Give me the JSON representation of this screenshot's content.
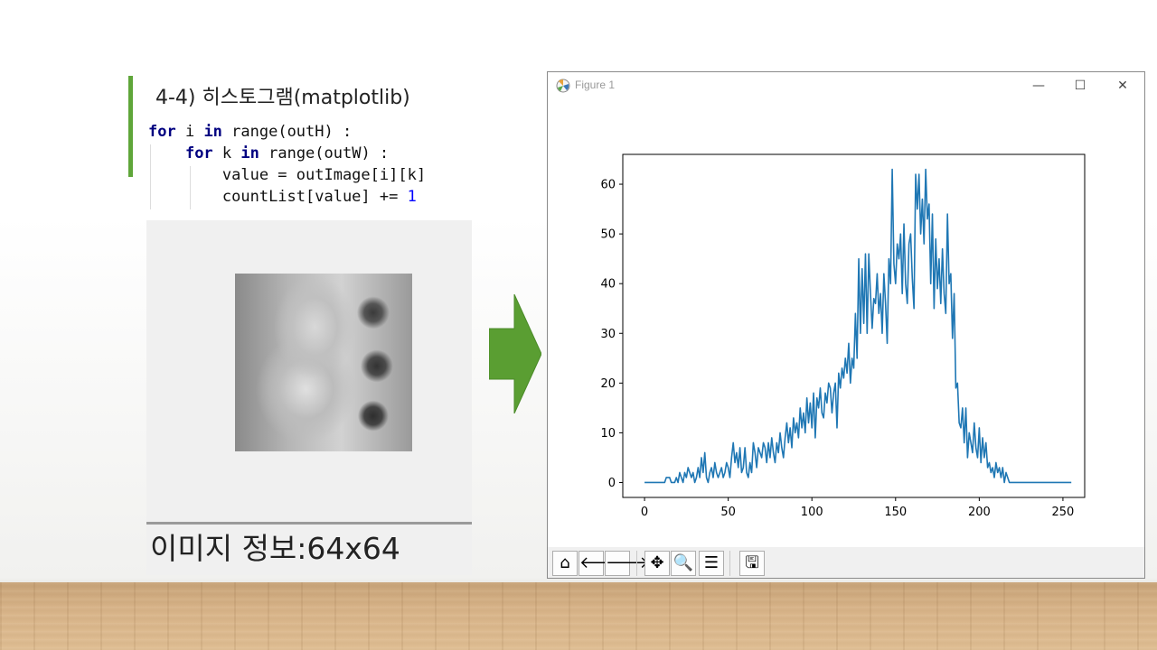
{
  "slide": {
    "title": "4-4) 히스토그램(matplotlib)",
    "code": [
      {
        "indent": "",
        "parts": [
          {
            "t": "for",
            "k": "kw"
          },
          {
            "t": " i "
          },
          {
            "t": "in",
            "k": "kw"
          },
          {
            "t": " range(outH) :"
          }
        ]
      },
      {
        "indent": "    ",
        "parts": [
          {
            "t": "for",
            "k": "kw"
          },
          {
            "t": " k "
          },
          {
            "t": "in",
            "k": "kw"
          },
          {
            "t": " range(outW) :"
          }
        ]
      },
      {
        "indent": "        ",
        "parts": [
          {
            "t": "value = outImage[i][k]"
          }
        ]
      },
      {
        "indent": "        ",
        "parts": [
          {
            "t": "countList[value] += "
          },
          {
            "t": "1",
            "k": "num"
          }
        ]
      }
    ],
    "image_info": "이미지 정보:64x64",
    "accent_color": "#5fa63a",
    "arrow_color": "#5a9e32"
  },
  "figure_window": {
    "title": "Figure 1",
    "icon": "matplotlib-icon",
    "controls": {
      "minimize": "—",
      "maximize": "☐",
      "close": "✕"
    },
    "toolbar": [
      {
        "name": "home-icon",
        "glyph": "⌂"
      },
      {
        "name": "back-icon",
        "glyph": "🡐"
      },
      {
        "name": "forward-icon",
        "glyph": "🡒"
      },
      {
        "name": "pan-icon",
        "glyph": "✥"
      },
      {
        "name": "zoom-icon",
        "glyph": "🔍"
      },
      {
        "name": "configure-subplots-icon",
        "glyph": "☰"
      },
      {
        "name": "save-icon",
        "glyph": "🖫"
      }
    ]
  },
  "chart_data": {
    "type": "line",
    "title": "",
    "xlabel": "",
    "ylabel": "",
    "xlim": [
      -13,
      263
    ],
    "ylim": [
      -3,
      66
    ],
    "xticks": [
      0,
      50,
      100,
      150,
      200,
      250
    ],
    "yticks": [
      0,
      10,
      20,
      30,
      40,
      50,
      60
    ],
    "line_color": "#1f77b4",
    "grid": false,
    "series": [
      {
        "name": "",
        "points": [
          [
            0,
            0
          ],
          [
            12,
            0
          ],
          [
            13,
            1
          ],
          [
            15,
            1
          ],
          [
            16,
            0
          ],
          [
            18,
            0
          ],
          [
            19,
            1
          ],
          [
            20,
            0
          ],
          [
            21,
            2
          ],
          [
            22,
            1
          ],
          [
            23,
            0
          ],
          [
            24,
            2
          ],
          [
            25,
            1
          ],
          [
            26,
            3
          ],
          [
            27,
            2
          ],
          [
            28,
            1
          ],
          [
            29,
            2
          ],
          [
            30,
            0
          ],
          [
            31,
            1
          ],
          [
            32,
            3
          ],
          [
            33,
            1
          ],
          [
            34,
            5
          ],
          [
            35,
            2
          ],
          [
            36,
            6
          ],
          [
            37,
            1
          ],
          [
            38,
            0
          ],
          [
            39,
            2
          ],
          [
            40,
            3
          ],
          [
            41,
            1
          ],
          [
            42,
            4
          ],
          [
            43,
            2
          ],
          [
            44,
            1
          ],
          [
            45,
            2
          ],
          [
            46,
            3
          ],
          [
            47,
            1
          ],
          [
            48,
            2
          ],
          [
            49,
            4
          ],
          [
            50,
            3
          ],
          [
            51,
            1
          ],
          [
            52,
            5
          ],
          [
            53,
            8
          ],
          [
            54,
            4
          ],
          [
            55,
            6
          ],
          [
            56,
            3
          ],
          [
            57,
            7
          ],
          [
            58,
            2
          ],
          [
            59,
            3
          ],
          [
            60,
            7
          ],
          [
            61,
            2
          ],
          [
            62,
            1
          ],
          [
            63,
            4
          ],
          [
            64,
            2
          ],
          [
            65,
            8
          ],
          [
            66,
            6
          ],
          [
            67,
            3
          ],
          [
            68,
            7
          ],
          [
            69,
            6
          ],
          [
            70,
            5
          ],
          [
            71,
            8
          ],
          [
            72,
            7
          ],
          [
            73,
            4
          ],
          [
            74,
            8
          ],
          [
            75,
            5
          ],
          [
            76,
            9
          ],
          [
            77,
            6
          ],
          [
            78,
            4
          ],
          [
            79,
            8
          ],
          [
            80,
            6
          ],
          [
            81,
            10
          ],
          [
            82,
            7
          ],
          [
            83,
            5
          ],
          [
            84,
            9
          ],
          [
            85,
            12
          ],
          [
            86,
            8
          ],
          [
            87,
            11
          ],
          [
            88,
            7
          ],
          [
            89,
            13
          ],
          [
            90,
            10
          ],
          [
            91,
            12
          ],
          [
            92,
            9
          ],
          [
            93,
            15
          ],
          [
            94,
            11
          ],
          [
            95,
            14
          ],
          [
            96,
            10
          ],
          [
            97,
            17
          ],
          [
            98,
            12
          ],
          [
            99,
            16
          ],
          [
            100,
            11
          ],
          [
            101,
            18
          ],
          [
            102,
            9
          ],
          [
            103,
            17
          ],
          [
            104,
            15
          ],
          [
            105,
            19
          ],
          [
            106,
            14
          ],
          [
            107,
            13
          ],
          [
            108,
            18
          ],
          [
            109,
            16
          ],
          [
            110,
            20
          ],
          [
            111,
            19
          ],
          [
            112,
            14
          ],
          [
            113,
            18
          ],
          [
            114,
            20
          ],
          [
            115,
            11
          ],
          [
            116,
            22
          ],
          [
            117,
            19
          ],
          [
            118,
            23
          ],
          [
            119,
            21
          ],
          [
            120,
            25
          ],
          [
            121,
            22
          ],
          [
            122,
            28
          ],
          [
            123,
            20
          ],
          [
            124,
            25
          ],
          [
            125,
            23
          ],
          [
            126,
            34
          ],
          [
            127,
            25
          ],
          [
            128,
            45
          ],
          [
            129,
            30
          ],
          [
            130,
            43
          ],
          [
            131,
            32
          ],
          [
            132,
            46
          ],
          [
            133,
            30
          ],
          [
            134,
            46
          ],
          [
            135,
            38
          ],
          [
            136,
            31
          ],
          [
            137,
            37
          ],
          [
            138,
            36
          ],
          [
            139,
            42
          ],
          [
            140,
            34
          ],
          [
            141,
            38
          ],
          [
            142,
            30
          ],
          [
            143,
            42
          ],
          [
            144,
            36
          ],
          [
            145,
            28
          ],
          [
            146,
            45
          ],
          [
            147,
            40
          ],
          [
            148,
            63
          ],
          [
            149,
            44
          ],
          [
            150,
            40
          ],
          [
            151,
            48
          ],
          [
            152,
            45
          ],
          [
            153,
            50
          ],
          [
            154,
            38
          ],
          [
            155,
            52
          ],
          [
            156,
            40
          ],
          [
            157,
            36
          ],
          [
            158,
            48
          ],
          [
            159,
            50
          ],
          [
            160,
            41
          ],
          [
            161,
            35
          ],
          [
            162,
            62
          ],
          [
            163,
            55
          ],
          [
            164,
            62
          ],
          [
            165,
            50
          ],
          [
            166,
            57
          ],
          [
            167,
            48
          ],
          [
            168,
            63
          ],
          [
            169,
            53
          ],
          [
            170,
            56
          ],
          [
            171,
            40
          ],
          [
            172,
            54
          ],
          [
            173,
            35
          ],
          [
            174,
            49
          ],
          [
            175,
            39
          ],
          [
            176,
            45
          ],
          [
            177,
            36
          ],
          [
            178,
            47
          ],
          [
            179,
            38
          ],
          [
            180,
            34
          ],
          [
            181,
            54
          ],
          [
            182,
            40
          ],
          [
            183,
            42
          ],
          [
            184,
            29
          ],
          [
            185,
            38
          ],
          [
            186,
            19
          ],
          [
            187,
            20
          ],
          [
            188,
            12
          ],
          [
            189,
            11
          ],
          [
            190,
            15
          ],
          [
            191,
            8
          ],
          [
            192,
            15
          ],
          [
            193,
            5
          ],
          [
            194,
            10
          ],
          [
            195,
            8
          ],
          [
            196,
            6
          ],
          [
            197,
            12
          ],
          [
            198,
            7
          ],
          [
            199,
            5
          ],
          [
            200,
            11
          ],
          [
            201,
            4
          ],
          [
            202,
            9
          ],
          [
            203,
            5
          ],
          [
            204,
            8
          ],
          [
            205,
            3
          ],
          [
            206,
            4
          ],
          [
            207,
            2
          ],
          [
            208,
            3
          ],
          [
            209,
            1
          ],
          [
            210,
            4
          ],
          [
            211,
            2
          ],
          [
            212,
            3
          ],
          [
            213,
            1
          ],
          [
            214,
            3
          ],
          [
            215,
            0
          ],
          [
            216,
            2
          ],
          [
            217,
            1
          ],
          [
            218,
            0
          ],
          [
            220,
            0
          ],
          [
            255,
            0
          ]
        ]
      }
    ]
  }
}
